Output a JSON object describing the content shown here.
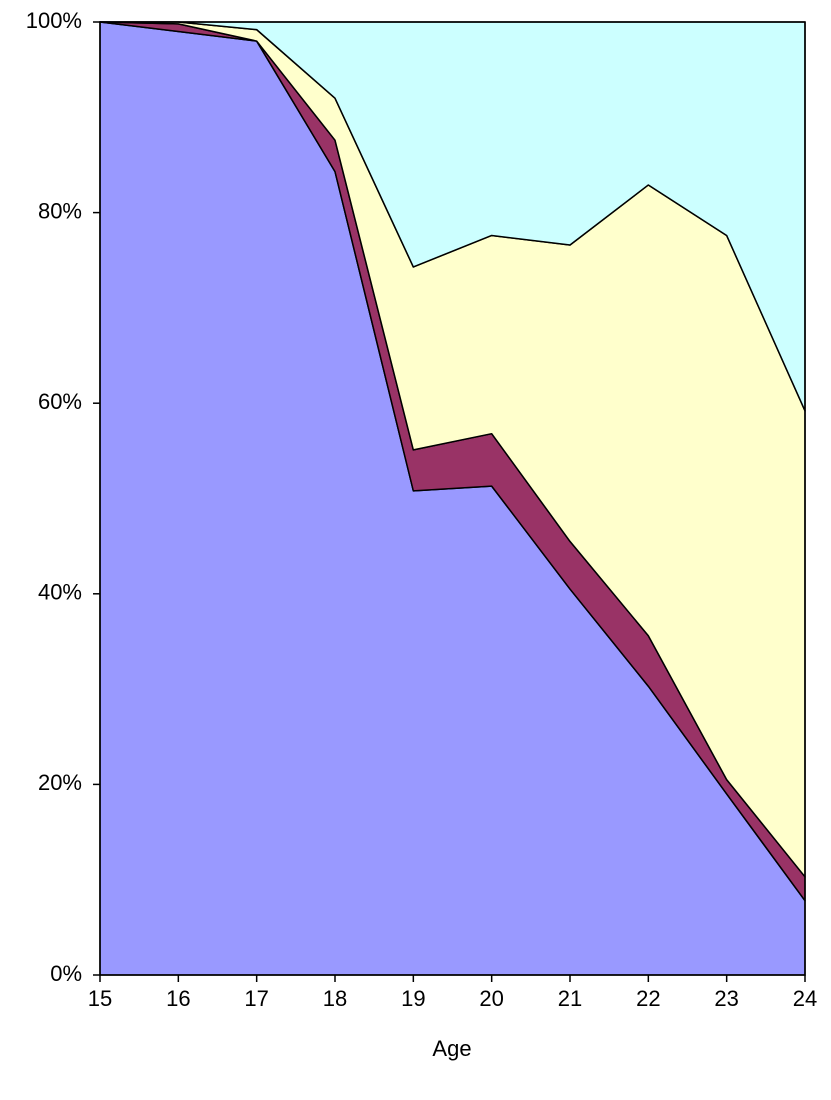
{
  "chart_data": {
    "type": "stacked_area",
    "x_label": "Age",
    "x": [
      15,
      16,
      17,
      18,
      19,
      20,
      21,
      22,
      23,
      24
    ],
    "xlim": [
      15,
      24
    ],
    "xticks": [
      15,
      16,
      17,
      18,
      19,
      20,
      21,
      22,
      23,
      24
    ],
    "ylim": [
      0,
      100
    ],
    "yticks": [
      {
        "value": 0,
        "label": "0%"
      },
      {
        "value": 20,
        "label": "20%"
      },
      {
        "value": 40,
        "label": "40%"
      },
      {
        "value": 60,
        "label": "60%"
      },
      {
        "value": 80,
        "label": "80%"
      },
      {
        "value": 100,
        "label": "100%"
      }
    ],
    "series": [
      {
        "color": "#9999ff",
        "values": [
          100,
          99,
          98,
          84.3,
          50.8,
          51.3,
          40.5,
          30.3,
          19,
          7.8
        ]
      },
      {
        "color": "#993366",
        "values": [
          0,
          0.8,
          0,
          3.3,
          4.3,
          5.5,
          5,
          5.3,
          1.5,
          2.5
        ]
      },
      {
        "color": "#ffffcc",
        "values": [
          0,
          0.2,
          1.2,
          4.4,
          19.2,
          20.8,
          31.1,
          47.3,
          57.1,
          48.9
        ]
      },
      {
        "color": "#ccffff",
        "values": [
          0,
          0,
          0.8,
          8,
          25.7,
          22.4,
          23.4,
          17.1,
          22.4,
          40.8
        ]
      }
    ]
  }
}
